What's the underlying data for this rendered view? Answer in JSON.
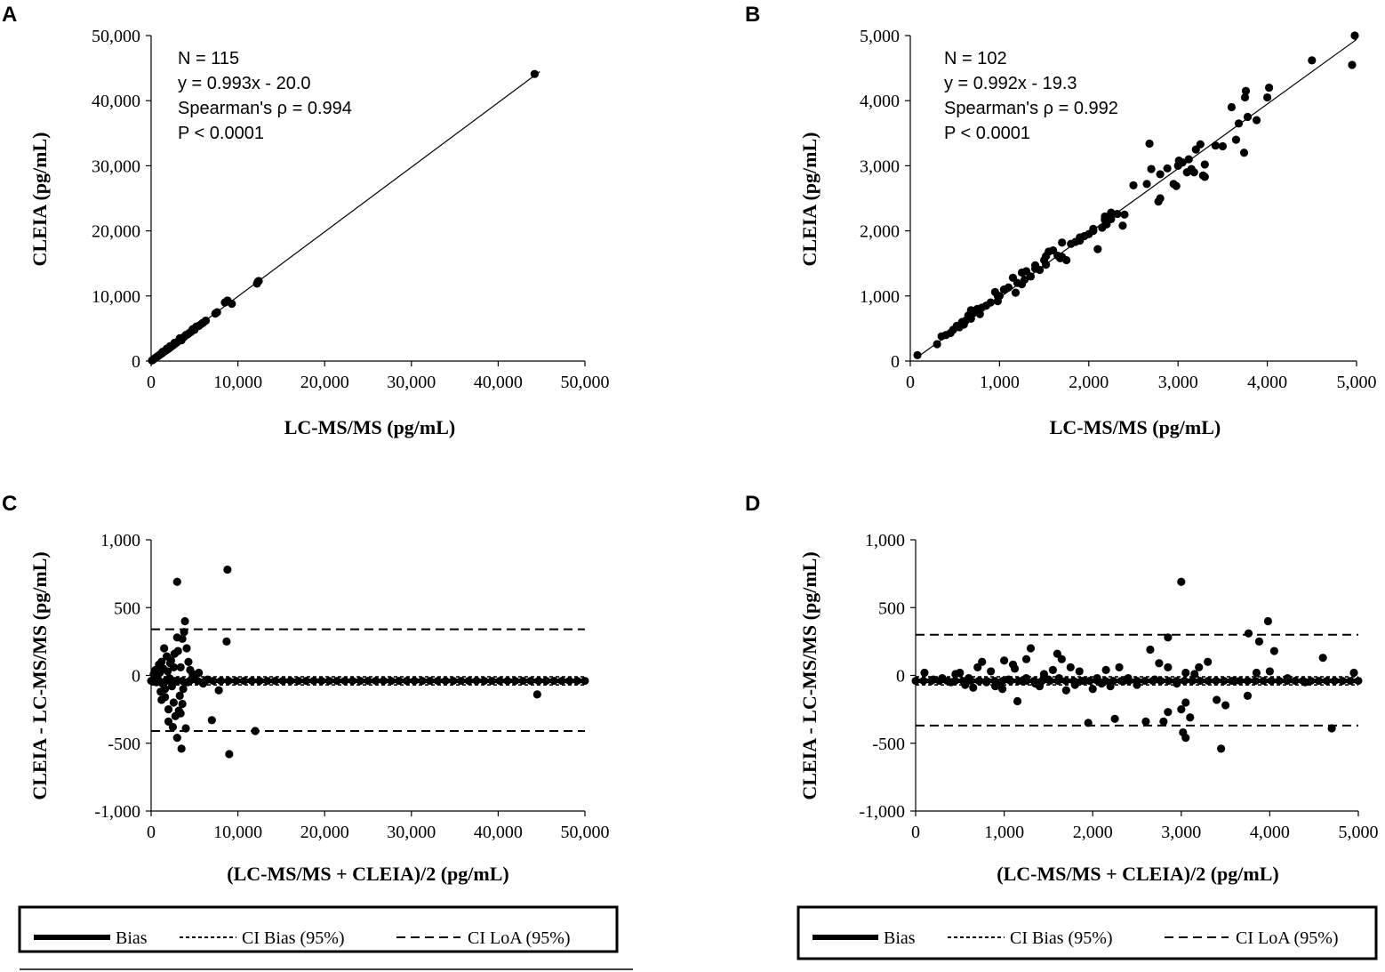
{
  "chart_data": [
    {
      "panel": "A",
      "type": "scatter",
      "xlabel": "LC-MS/MS (pg/mL)",
      "ylabel": "CLEIA (pg/mL)",
      "xlim": [
        0,
        50000
      ],
      "ylim": [
        0,
        50000
      ],
      "xticks": [
        0,
        10000,
        20000,
        30000,
        40000,
        50000
      ],
      "xtick_labels": [
        "0",
        "10,000",
        "20,000",
        "30,000",
        "40,000",
        "50,000"
      ],
      "yticks": [
        0,
        10000,
        20000,
        30000,
        40000,
        50000
      ],
      "ytick_labels": [
        "0",
        "10,000",
        "20,000",
        "30,000",
        "40,000",
        "50,000"
      ],
      "annotations": [
        "N = 115",
        "y = 0.993x - 20.0",
        "Spearman's ρ = 0.994",
        "P < 0.0001"
      ],
      "fit": {
        "slope": 0.993,
        "intercept": -20.0,
        "x_range": [
          0,
          44800
        ]
      },
      "points": [
        [
          44200,
          44100
        ],
        [
          12300,
          12200
        ],
        [
          12200,
          11900
        ],
        [
          12400,
          12300
        ],
        [
          8800,
          9300
        ],
        [
          9300,
          8800
        ],
        [
          8500,
          9000
        ],
        [
          7600,
          7500
        ],
        [
          7400,
          7300
        ],
        [
          6300,
          6200
        ],
        [
          6000,
          5900
        ],
        [
          5800,
          5700
        ],
        [
          5500,
          5400
        ],
        [
          5200,
          5300
        ],
        [
          5000,
          4800
        ],
        [
          4800,
          4900
        ],
        [
          4600,
          4500
        ],
        [
          4400,
          4300
        ],
        [
          4200,
          4100
        ],
        [
          4000,
          4000
        ],
        [
          3800,
          3700
        ],
        [
          3600,
          3500
        ],
        [
          3500,
          3200
        ],
        [
          3400,
          3300
        ],
        [
          3200,
          3100
        ],
        [
          3000,
          2900
        ],
        [
          2900,
          2800
        ],
        [
          2800,
          2700
        ],
        [
          2600,
          2500
        ],
        [
          2500,
          2400
        ],
        [
          2400,
          2300
        ],
        [
          2300,
          2200
        ],
        [
          2200,
          2100
        ],
        [
          2100,
          2000
        ],
        [
          2000,
          1900
        ],
        [
          1900,
          1800
        ],
        [
          1800,
          1700
        ],
        [
          1700,
          1600
        ],
        [
          1600,
          1550
        ],
        [
          1500,
          1450
        ],
        [
          1400,
          1350
        ],
        [
          1300,
          1250
        ],
        [
          1200,
          1150
        ],
        [
          1100,
          1050
        ],
        [
          1000,
          980
        ],
        [
          900,
          880
        ],
        [
          800,
          760
        ],
        [
          700,
          690
        ],
        [
          600,
          580
        ],
        [
          500,
          480
        ],
        [
          400,
          390
        ],
        [
          300,
          290
        ],
        [
          200,
          190
        ],
        [
          100,
          90
        ],
        [
          3700,
          3600
        ],
        [
          3300,
          3500
        ],
        [
          2700,
          2800
        ],
        [
          2200,
          2300
        ],
        [
          1800,
          1900
        ],
        [
          1300,
          1400
        ]
      ]
    },
    {
      "panel": "B",
      "type": "scatter",
      "xlabel": "LC-MS/MS (pg/mL)",
      "ylabel": "CLEIA (pg/mL)",
      "xlim": [
        0,
        5000
      ],
      "ylim": [
        0,
        5000
      ],
      "xticks": [
        0,
        1000,
        2000,
        3000,
        4000,
        5000
      ],
      "xtick_labels": [
        "0",
        "1,000",
        "2,000",
        "3,000",
        "4,000",
        "5,000"
      ],
      "yticks": [
        0,
        1000,
        2000,
        3000,
        4000,
        5000
      ],
      "ytick_labels": [
        "0",
        "1,000",
        "2,000",
        "3,000",
        "4,000",
        "5,000"
      ],
      "annotations": [
        "N = 102",
        "y = 0.992x - 19.3",
        "Spearman's ρ = 0.992",
        "P < 0.0001"
      ],
      "fit": {
        "slope": 0.992,
        "intercept": -19.3,
        "x_range": [
          80,
          5000
        ]
      },
      "points": [
        [
          4980,
          5000
        ],
        [
          4950,
          4550
        ],
        [
          4500,
          4620
        ],
        [
          4020,
          4200
        ],
        [
          4000,
          4050
        ],
        [
          3880,
          3700
        ],
        [
          3780,
          3750
        ],
        [
          3760,
          4150
        ],
        [
          3750,
          4050
        ],
        [
          3740,
          3200
        ],
        [
          3680,
          3650
        ],
        [
          3650,
          3400
        ],
        [
          3600,
          3900
        ],
        [
          3500,
          3300
        ],
        [
          3300,
          2830
        ],
        [
          3280,
          2850
        ],
        [
          3250,
          3330
        ],
        [
          3200,
          3250
        ],
        [
          3180,
          2900
        ],
        [
          3150,
          2950
        ],
        [
          3120,
          3100
        ],
        [
          3100,
          2900
        ],
        [
          3050,
          3050
        ],
        [
          3000,
          3000
        ],
        [
          3010,
          3080
        ],
        [
          2980,
          2690
        ],
        [
          2950,
          2720
        ],
        [
          2800,
          2870
        ],
        [
          2780,
          2450
        ],
        [
          2700,
          2950
        ],
        [
          2680,
          3340
        ],
        [
          2650,
          2720
        ],
        [
          2500,
          2700
        ],
        [
          2400,
          2250
        ],
        [
          2380,
          2080
        ],
        [
          2320,
          2260
        ],
        [
          2250,
          2280
        ],
        [
          2200,
          2100
        ],
        [
          2180,
          2220
        ],
        [
          2150,
          2050
        ],
        [
          2100,
          1720
        ],
        [
          2050,
          2000
        ],
        [
          2000,
          1950
        ],
        [
          1950,
          1920
        ],
        [
          1900,
          1850
        ],
        [
          1850,
          1830
        ],
        [
          1800,
          1800
        ],
        [
          1750,
          1550
        ],
        [
          1700,
          1600
        ],
        [
          1650,
          1620
        ],
        [
          1600,
          1700
        ],
        [
          1550,
          1680
        ],
        [
          1520,
          1480
        ],
        [
          1500,
          1550
        ],
        [
          1450,
          1400
        ],
        [
          1400,
          1420
        ],
        [
          1350,
          1300
        ],
        [
          1300,
          1380
        ],
        [
          1280,
          1250
        ],
        [
          1250,
          1360
        ],
        [
          1200,
          1200
        ],
        [
          1180,
          1050
        ],
        [
          1150,
          1280
        ],
        [
          1100,
          1130
        ],
        [
          1050,
          1100
        ],
        [
          1000,
          1000
        ],
        [
          980,
          920
        ],
        [
          950,
          1060
        ],
        [
          900,
          900
        ],
        [
          850,
          850
        ],
        [
          800,
          820
        ],
        [
          780,
          720
        ],
        [
          750,
          800
        ],
        [
          700,
          730
        ],
        [
          680,
          650
        ],
        [
          650,
          700
        ],
        [
          620,
          620
        ],
        [
          600,
          560
        ],
        [
          580,
          600
        ],
        [
          550,
          520
        ],
        [
          520,
          540
        ],
        [
          480,
          480
        ],
        [
          450,
          430
        ],
        [
          400,
          400
        ],
        [
          350,
          380
        ],
        [
          300,
          260
        ],
        [
          80,
          90
        ],
        [
          1700,
          1820
        ],
        [
          2800,
          2500
        ],
        [
          3300,
          3020
        ],
        [
          1400,
          1470
        ],
        [
          2250,
          2180
        ],
        [
          1520,
          1610
        ],
        [
          2050,
          2030
        ],
        [
          680,
          780
        ],
        [
          980,
          1000
        ],
        [
          1250,
          1180
        ],
        [
          1680,
          1580
        ],
        [
          2180,
          2170
        ],
        [
          2880,
          2960
        ],
        [
          3420,
          3310
        ],
        [
          1900,
          1900
        ]
      ]
    },
    {
      "panel": "C",
      "type": "scatter",
      "xlabel": "(LC-MS/MS + CLEIA)/2 (pg/mL)",
      "ylabel": "CLEIA - LC-MS/MS (pg/mL)",
      "xlim": [
        0,
        50000
      ],
      "ylim": [
        -1000,
        1000
      ],
      "xticks": [
        0,
        10000,
        20000,
        30000,
        40000,
        50000
      ],
      "xtick_labels": [
        "0",
        "10,000",
        "20,000",
        "30,000",
        "40,000",
        "50,000"
      ],
      "yticks": [
        -1000,
        -500,
        0,
        500,
        1000
      ],
      "ytick_labels": [
        "-1,000",
        "-500",
        "0",
        "500",
        "1,000"
      ],
      "bias": -40,
      "ci_bias": [
        -70,
        -10
      ],
      "ci_loa": [
        -410,
        340
      ],
      "bias_x_range": [
        0,
        50000
      ],
      "points": [
        [
          8800,
          780
        ],
        [
          3000,
          690
        ],
        [
          8700,
          250
        ],
        [
          3900,
          400
        ],
        [
          3800,
          320
        ],
        [
          3600,
          270
        ],
        [
          3000,
          280
        ],
        [
          4100,
          200
        ],
        [
          4300,
          100
        ],
        [
          9000,
          -580
        ],
        [
          3500,
          -540
        ],
        [
          12000,
          -410
        ],
        [
          3000,
          -460
        ],
        [
          4000,
          -390
        ],
        [
          2500,
          -380
        ],
        [
          2000,
          -340
        ],
        [
          7000,
          -330
        ],
        [
          7800,
          -110
        ],
        [
          44500,
          -140
        ],
        [
          3200,
          -260
        ],
        [
          3400,
          -280
        ],
        [
          2800,
          -300
        ],
        [
          3600,
          -210
        ],
        [
          2600,
          -200
        ],
        [
          1200,
          -180
        ],
        [
          1500,
          200
        ],
        [
          1800,
          140
        ],
        [
          2200,
          90
        ],
        [
          2400,
          -80
        ],
        [
          2600,
          60
        ],
        [
          500,
          40
        ],
        [
          800,
          -30
        ],
        [
          1000,
          20
        ],
        [
          1300,
          -60
        ],
        [
          1600,
          -100
        ],
        [
          1900,
          30
        ],
        [
          2100,
          -20
        ],
        [
          300,
          10
        ],
        [
          600,
          -50
        ],
        [
          900,
          80
        ],
        [
          1100,
          -120
        ],
        [
          1400,
          50
        ],
        [
          1700,
          -40
        ],
        [
          2300,
          110
        ],
        [
          4500,
          40
        ],
        [
          5000,
          -20
        ],
        [
          5500,
          20
        ],
        [
          6000,
          -60
        ],
        [
          6500,
          -30
        ],
        [
          2700,
          160
        ],
        [
          3300,
          -150
        ],
        [
          3700,
          -100
        ],
        [
          2000,
          -250
        ],
        [
          1200,
          100
        ],
        [
          1600,
          -160
        ],
        [
          2900,
          -40
        ],
        [
          3100,
          180
        ],
        [
          3400,
          60
        ],
        [
          4200,
          -50
        ],
        [
          4800,
          10
        ]
      ]
    },
    {
      "panel": "D",
      "type": "scatter",
      "xlabel": "(LC-MS/MS + CLEIA)/2 (pg/mL)",
      "ylabel": "CLEIA - LC-MS/MS (pg/mL)",
      "xlim": [
        0,
        5000
      ],
      "ylim": [
        -1000,
        1000
      ],
      "xticks": [
        0,
        1000,
        2000,
        3000,
        4000,
        5000
      ],
      "xtick_labels": [
        "0",
        "1,000",
        "2,000",
        "3,000",
        "4,000",
        "5,000"
      ],
      "yticks": [
        -1000,
        -500,
        0,
        500,
        1000
      ],
      "ytick_labels": [
        "-1,000",
        "-500",
        "0",
        "500",
        "1,000"
      ],
      "bias": -40,
      "ci_bias": [
        -70,
        -10
      ],
      "ci_loa": [
        -370,
        300
      ],
      "bias_x_range": [
        0,
        5000
      ],
      "points": [
        [
          3000,
          690
        ],
        [
          3980,
          400
        ],
        [
          3760,
          310
        ],
        [
          3880,
          250
        ],
        [
          2850,
          280
        ],
        [
          4050,
          180
        ],
        [
          4600,
          130
        ],
        [
          4000,
          30
        ],
        [
          3300,
          100
        ],
        [
          3200,
          60
        ],
        [
          3050,
          20
        ],
        [
          2850,
          60
        ],
        [
          2750,
          90
        ],
        [
          2650,
          190
        ],
        [
          1300,
          200
        ],
        [
          1600,
          160
        ],
        [
          1650,
          120
        ],
        [
          1000,
          110
        ],
        [
          1100,
          80
        ],
        [
          750,
          100
        ],
        [
          700,
          60
        ],
        [
          500,
          20
        ],
        [
          600,
          -20
        ],
        [
          800,
          -50
        ],
        [
          900,
          -80
        ],
        [
          1150,
          -190
        ],
        [
          1200,
          -40
        ],
        [
          1250,
          -20
        ],
        [
          1350,
          -60
        ],
        [
          1400,
          -80
        ],
        [
          1500,
          -30
        ],
        [
          1550,
          40
        ],
        [
          1700,
          -110
        ],
        [
          1800,
          -70
        ],
        [
          1900,
          -40
        ],
        [
          1950,
          -350
        ],
        [
          2000,
          -100
        ],
        [
          2100,
          -60
        ],
        [
          2200,
          -80
        ],
        [
          2250,
          -320
        ],
        [
          2300,
          60
        ],
        [
          2400,
          -20
        ],
        [
          2600,
          -340
        ],
        [
          2800,
          -340
        ],
        [
          2850,
          -270
        ],
        [
          3000,
          -250
        ],
        [
          3020,
          -420
        ],
        [
          3050,
          -460
        ],
        [
          3100,
          -310
        ],
        [
          3050,
          -200
        ],
        [
          3450,
          -540
        ],
        [
          3500,
          -220
        ],
        [
          3400,
          -180
        ],
        [
          3750,
          -150
        ],
        [
          4700,
          -390
        ],
        [
          4950,
          20
        ],
        [
          100,
          20
        ],
        [
          200,
          -30
        ],
        [
          300,
          -20
        ],
        [
          400,
          -50
        ],
        [
          450,
          10
        ],
        [
          650,
          -90
        ],
        [
          850,
          30
        ],
        [
          950,
          -60
        ],
        [
          1050,
          -30
        ],
        [
          1450,
          10
        ],
        [
          1750,
          60
        ],
        [
          2050,
          -20
        ],
        [
          2150,
          40
        ],
        [
          2350,
          -40
        ],
        [
          2500,
          -70
        ],
        [
          2700,
          -30
        ],
        [
          2950,
          -60
        ],
        [
          3150,
          10
        ],
        [
          3600,
          -40
        ],
        [
          3850,
          20
        ],
        [
          4200,
          -20
        ],
        [
          4400,
          -50
        ],
        [
          1850,
          30
        ],
        [
          1250,
          120
        ],
        [
          980,
          -100
        ],
        [
          560,
          -70
        ],
        [
          720,
          -40
        ],
        [
          1120,
          50
        ],
        [
          1620,
          -20
        ]
      ]
    }
  ],
  "legend": {
    "items": [
      {
        "label": "Bias",
        "style": "solid-thick"
      },
      {
        "label": "CI Bias (95%)",
        "style": "short-dash"
      },
      {
        "label": "CI LoA (95%)",
        "style": "long-dash"
      }
    ]
  },
  "colors": {
    "ink": "#000000",
    "background": "#ffffff"
  }
}
